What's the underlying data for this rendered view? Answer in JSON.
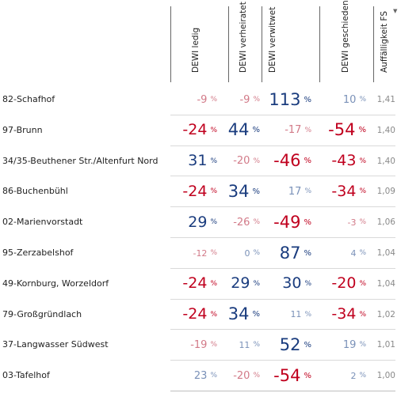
{
  "headers": {
    "ledig": "DEWI ledig",
    "verheiratet": "DEWI verheiratet",
    "verwitwet": "DEWI verwitwet",
    "geschieden": "DEWI geschieden",
    "fs": "Auffälligkeit FS",
    "sort_icon": "sort-descending-icon"
  },
  "percent_sign": "%",
  "colors": {
    "negative": "#c0001e",
    "positive": "#1a3c7e",
    "muted_pos": "#7a91b8",
    "muted_neg": "#d27a88",
    "fs_text": "#8a8a8a"
  },
  "rows": [
    {
      "name": "82-Schafhof",
      "cells": [
        {
          "v": "-9",
          "s": 1
        },
        {
          "v": "-9",
          "s": 1
        },
        {
          "v": "113",
          "s": 3
        },
        {
          "v": "10",
          "s": 1
        }
      ],
      "fs": "1,41"
    },
    {
      "name": "97-Brunn",
      "cells": [
        {
          "v": "-24",
          "s": 2
        },
        {
          "v": "44",
          "s": 3
        },
        {
          "v": "-17",
          "s": 1
        },
        {
          "v": "-54",
          "s": 3
        }
      ],
      "fs": "1,40"
    },
    {
      "name": "34/35-Beuthener Str./Altenfurt Nord",
      "cells": [
        {
          "v": "31",
          "s": 2
        },
        {
          "v": "-20",
          "s": 1
        },
        {
          "v": "-46",
          "s": 3
        },
        {
          "v": "-43",
          "s": 2
        }
      ],
      "fs": "1,40"
    },
    {
      "name": "86-Buchenbühl",
      "cells": [
        {
          "v": "-24",
          "s": 2
        },
        {
          "v": "34",
          "s": 3
        },
        {
          "v": "17",
          "s": 1
        },
        {
          "v": "-34",
          "s": 2
        }
      ],
      "fs": "1,09"
    },
    {
      "name": "02-Marienvorstadt",
      "cells": [
        {
          "v": "29",
          "s": 2
        },
        {
          "v": "-26",
          "s": 1
        },
        {
          "v": "-49",
          "s": 3
        },
        {
          "v": "-3",
          "s": 0
        }
      ],
      "fs": "1,06"
    },
    {
      "name": "95-Zerzabelshof",
      "cells": [
        {
          "v": "-12",
          "s": 0
        },
        {
          "v": "0",
          "s": 0
        },
        {
          "v": "87",
          "s": 3
        },
        {
          "v": "4",
          "s": 0
        }
      ],
      "fs": "1,04"
    },
    {
      "name": "49-Kornburg, Worzeldorf",
      "cells": [
        {
          "v": "-24",
          "s": 2
        },
        {
          "v": "29",
          "s": 2
        },
        {
          "v": "30",
          "s": 2
        },
        {
          "v": "-20",
          "s": 2
        }
      ],
      "fs": "1,04"
    },
    {
      "name": "79-Großgründlach",
      "cells": [
        {
          "v": "-24",
          "s": 2
        },
        {
          "v": "34",
          "s": 3
        },
        {
          "v": "11",
          "s": 0
        },
        {
          "v": "-34",
          "s": 2
        }
      ],
      "fs": "1,02"
    },
    {
      "name": "37-Langwasser Südwest",
      "cells": [
        {
          "v": "-19",
          "s": 1
        },
        {
          "v": "11",
          "s": 0
        },
        {
          "v": "52",
          "s": 3
        },
        {
          "v": "19",
          "s": 1
        }
      ],
      "fs": "1,01"
    },
    {
      "name": "03-Tafelhof",
      "cells": [
        {
          "v": "23",
          "s": 1
        },
        {
          "v": "-20",
          "s": 1
        },
        {
          "v": "-54",
          "s": 3
        },
        {
          "v": "2",
          "s": 0
        }
      ],
      "fs": "1,00"
    }
  ]
}
